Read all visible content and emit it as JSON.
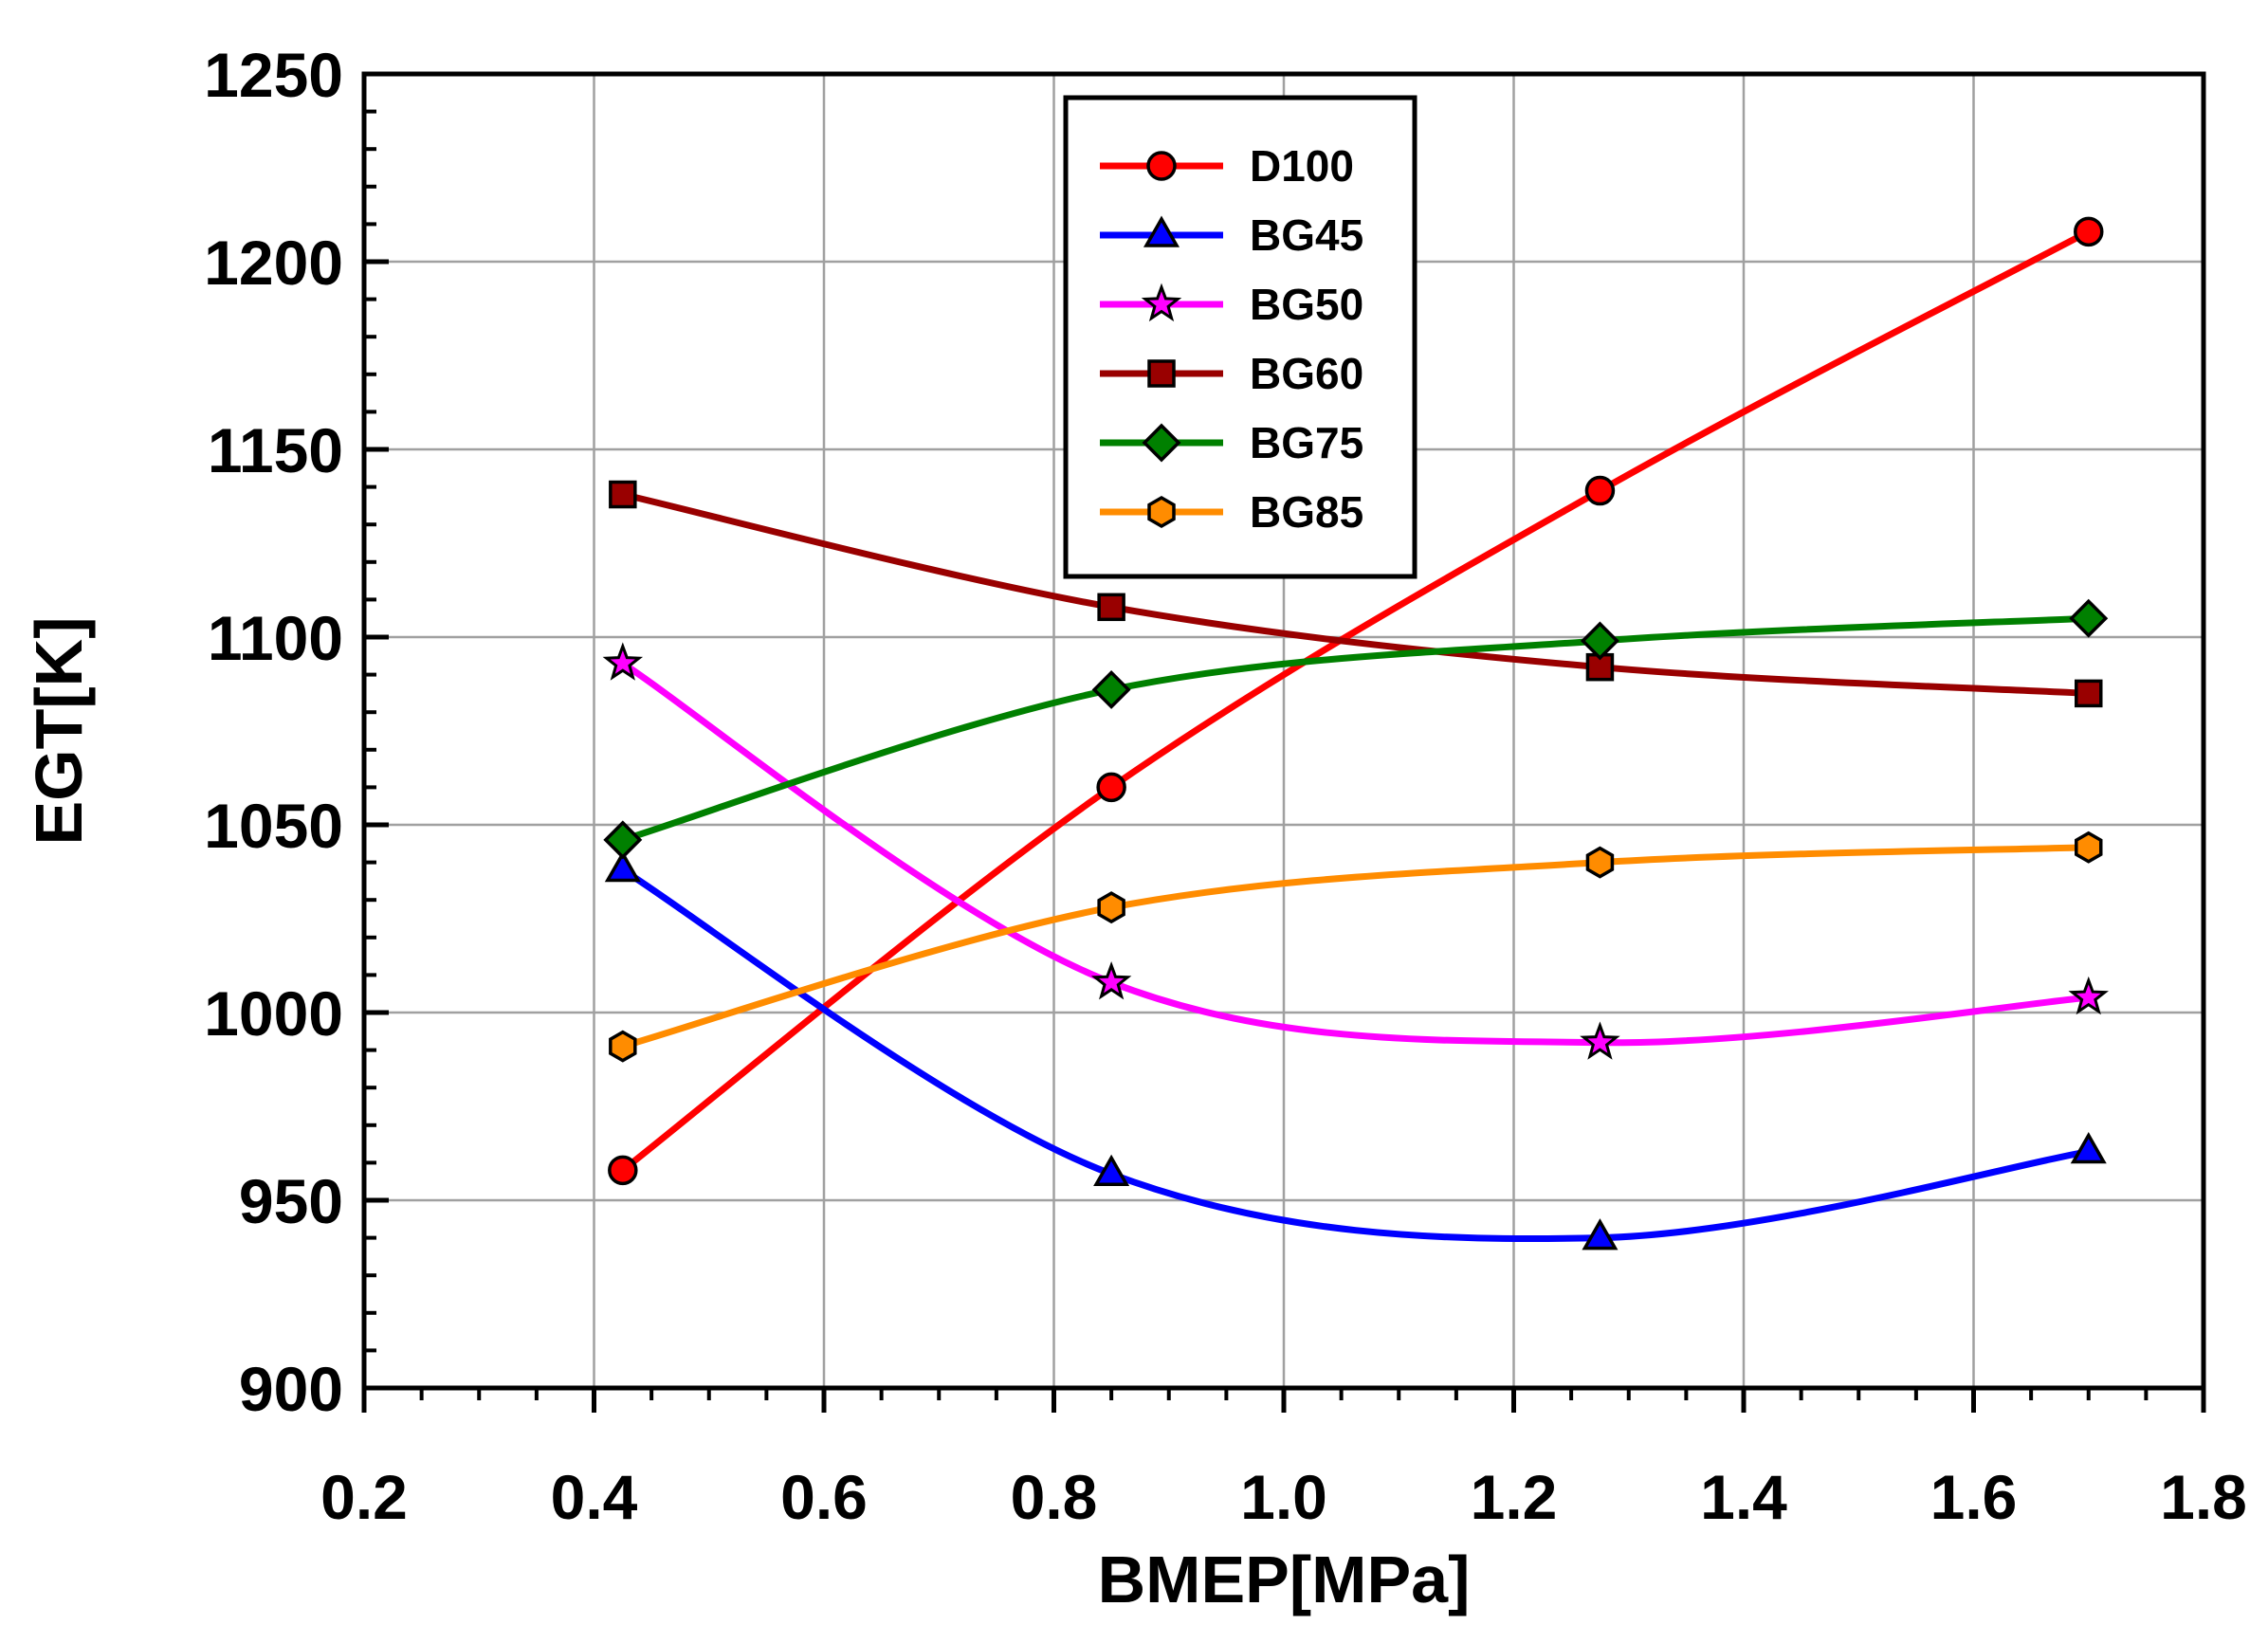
{
  "chart_data": {
    "type": "line",
    "title": "",
    "xlabel": "BMEP[MPa]",
    "ylabel": "EGT[K]",
    "xlim": [
      0.2,
      1.8
    ],
    "ylim": [
      900,
      1250
    ],
    "x_ticks": [
      0.2,
      0.4,
      0.6,
      0.8,
      1.0,
      1.2,
      1.4,
      1.6,
      1.8
    ],
    "x_tick_labels": [
      "0.2",
      "0.4",
      "0.6",
      "0.8",
      "1.0",
      "1.2",
      "1.4",
      "1.6",
      "1.8"
    ],
    "y_ticks": [
      900,
      950,
      1000,
      1050,
      1100,
      1150,
      1200,
      1250
    ],
    "y_tick_labels": [
      "900",
      "950",
      "1000",
      "1050",
      "1100",
      "1150",
      "1200",
      "1250"
    ],
    "grid": true,
    "legend_position": "top-center",
    "x": [
      0.425,
      0.85,
      1.275,
      1.7
    ],
    "series": [
      {
        "name": "D100",
        "color": "#ff0000",
        "marker": "circle",
        "values": [
          958,
          1060,
          1139,
          1208
        ]
      },
      {
        "name": "BG45",
        "color": "#0000ff",
        "marker": "triangle",
        "values": [
          1038,
          957,
          940,
          963
        ]
      },
      {
        "name": "BG50",
        "color": "#ff00ff",
        "marker": "star",
        "values": [
          1093,
          1008,
          992,
          1004
        ]
      },
      {
        "name": "BG60",
        "color": "#990000",
        "marker": "square",
        "values": [
          1138,
          1108,
          1092,
          1085
        ]
      },
      {
        "name": "BG75",
        "color": "#008000",
        "marker": "diamond",
        "values": [
          1046,
          1086,
          1099,
          1105
        ]
      },
      {
        "name": "BG85",
        "color": "#ff8c00",
        "marker": "hexagon",
        "values": [
          991,
          1028,
          1040,
          1044
        ]
      }
    ]
  }
}
